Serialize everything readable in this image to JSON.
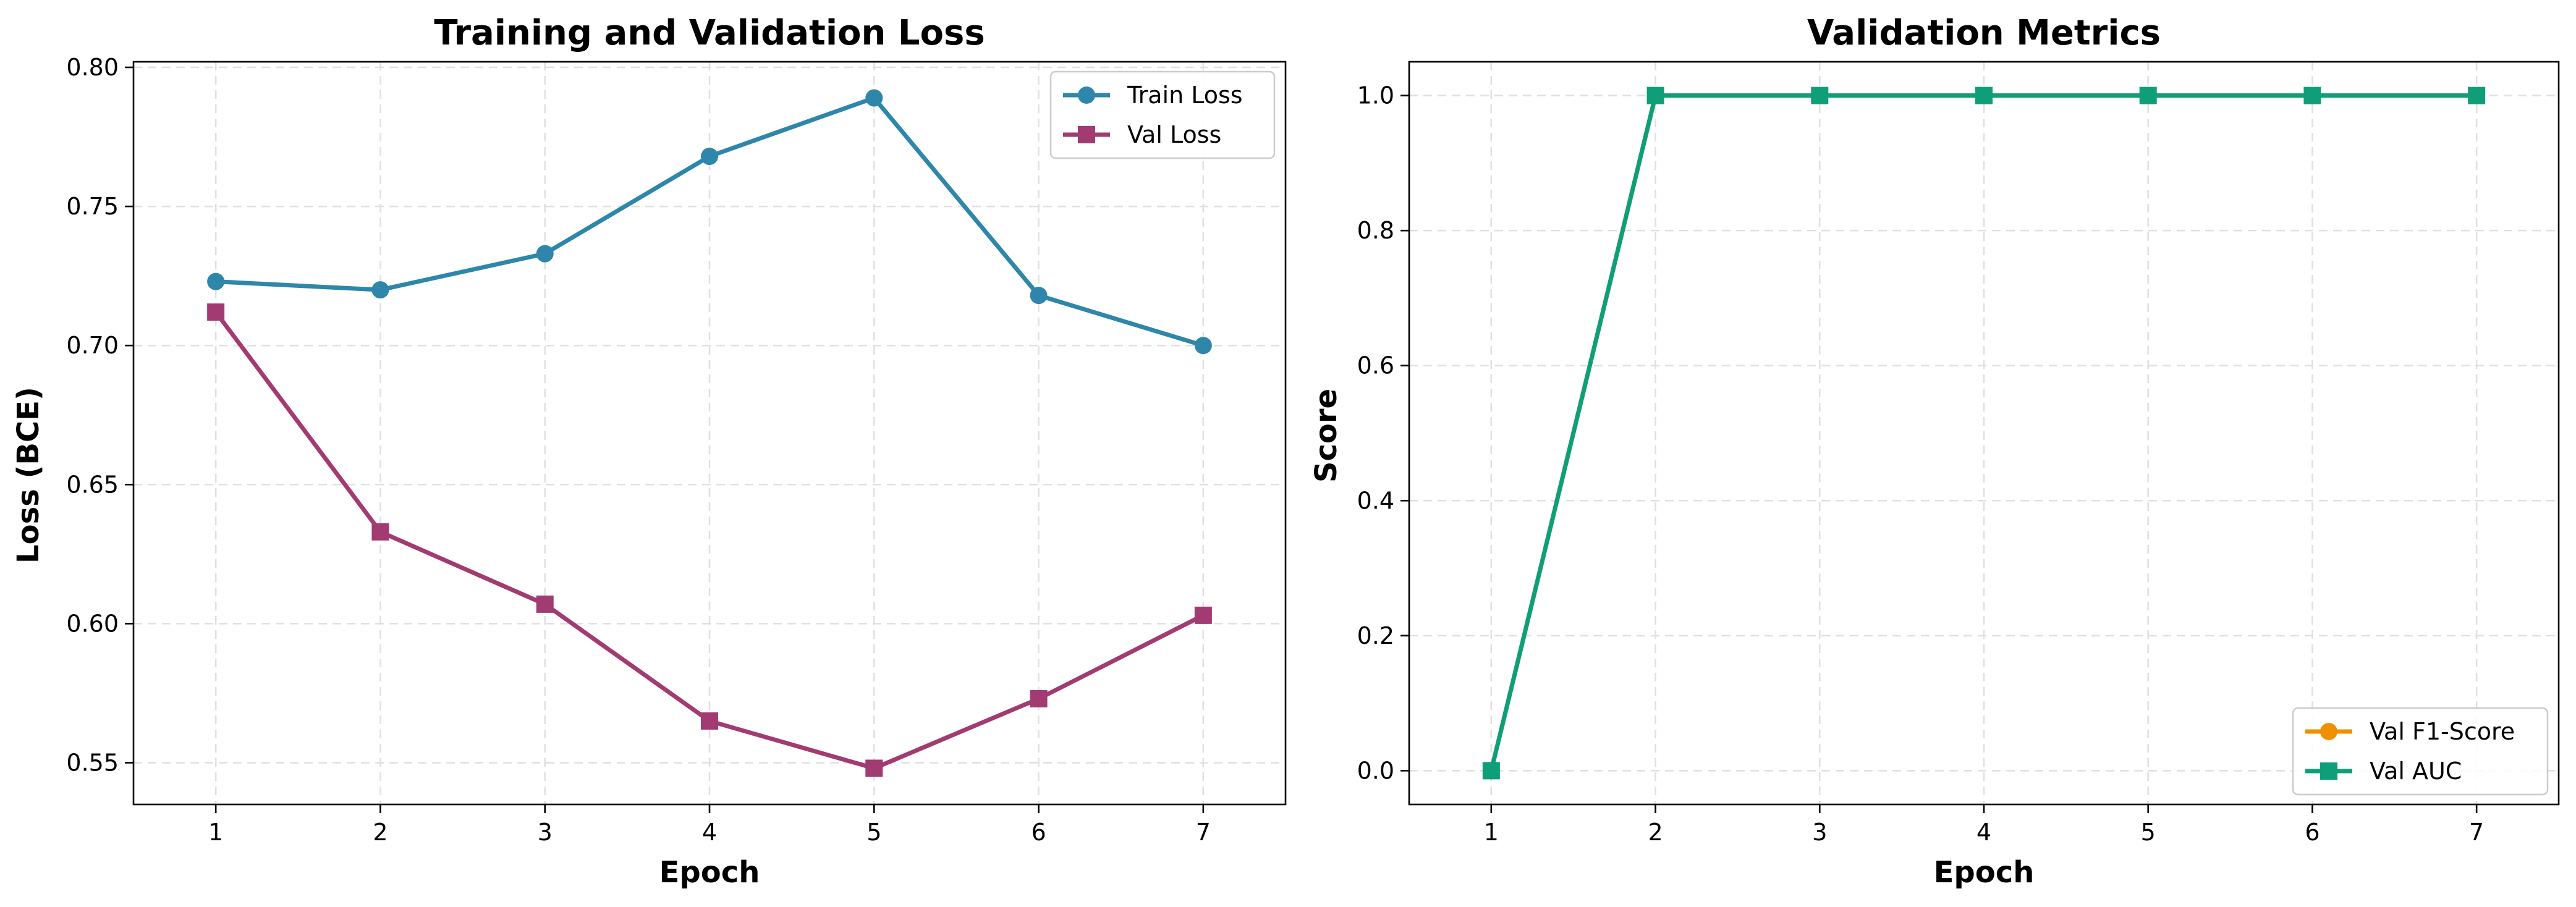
{
  "chart_data": [
    {
      "type": "line",
      "title": "Training and Validation Loss",
      "xlabel": "Epoch",
      "ylabel": "Loss (BCE)",
      "x": [
        1,
        2,
        3,
        4,
        5,
        6,
        7
      ],
      "xlim": [
        0.5,
        7.5
      ],
      "ylim": [
        0.535,
        0.802
      ],
      "xticks": [
        "1",
        "2",
        "3",
        "4",
        "5",
        "6",
        "7"
      ],
      "yticks": [
        "0.55",
        "0.60",
        "0.65",
        "0.70",
        "0.75",
        "0.80"
      ],
      "grid": true,
      "legend_position": "top-right",
      "series": [
        {
          "name": "Train Loss",
          "color": "#2e86ab",
          "marker": "circle",
          "values": [
            0.723,
            0.72,
            0.733,
            0.768,
            0.789,
            0.718,
            0.7
          ]
        },
        {
          "name": "Val Loss",
          "color": "#a23b72",
          "marker": "square",
          "values": [
            0.712,
            0.633,
            0.607,
            0.565,
            0.548,
            0.573,
            0.603
          ]
        }
      ]
    },
    {
      "type": "line",
      "title": "Validation Metrics",
      "xlabel": "Epoch",
      "ylabel": "Score",
      "x": [
        1,
        2,
        3,
        4,
        5,
        6,
        7
      ],
      "xlim": [
        0.5,
        7.5
      ],
      "ylim": [
        -0.05,
        1.05
      ],
      "xticks": [
        "1",
        "2",
        "3",
        "4",
        "5",
        "6",
        "7"
      ],
      "yticks": [
        "0.0",
        "0.2",
        "0.4",
        "0.6",
        "0.8",
        "1.0"
      ],
      "grid": true,
      "legend_position": "bottom-right",
      "series": [
        {
          "name": "Val F1-Score",
          "color": "#f18f01",
          "marker": "circle",
          "values": [
            0.0,
            1.0,
            1.0,
            1.0,
            1.0,
            1.0,
            1.0
          ]
        },
        {
          "name": "Val AUC",
          "color": "#0e9f78",
          "marker": "square",
          "values": [
            0.0,
            1.0,
            1.0,
            1.0,
            1.0,
            1.0,
            1.0
          ]
        }
      ]
    }
  ]
}
